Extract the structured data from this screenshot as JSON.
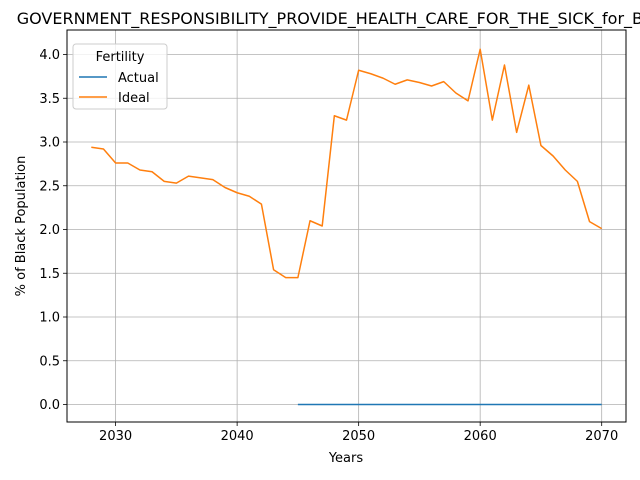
{
  "chart_data": {
    "type": "line",
    "title": "GOVERNMENT_RESPONSIBILITY_PROVIDE_HEALTH_CARE_FOR_THE_SICK_for_Black",
    "xlabel": "Years",
    "ylabel": "% of Black Population",
    "xlim": [
      2026,
      2072
    ],
    "ylim": [
      -0.2,
      4.28
    ],
    "xticks": [
      2030,
      2040,
      2050,
      2060,
      2070
    ],
    "yticks": [
      0.0,
      0.5,
      1.0,
      1.5,
      2.0,
      2.5,
      3.0,
      3.5,
      4.0
    ],
    "xtick_labels": [
      "2030",
      "2040",
      "2050",
      "2060",
      "2070"
    ],
    "ytick_labels": [
      "0.0",
      "0.5",
      "1.0",
      "1.5",
      "2.0",
      "2.5",
      "3.0",
      "3.5",
      "4.0"
    ],
    "grid": true,
    "legend": {
      "title": "Fertility",
      "placement": "top-left"
    },
    "series": [
      {
        "name": "Actual",
        "color": "#1f77b4",
        "x": [
          2045,
          2046,
          2047,
          2048,
          2049,
          2050,
          2051,
          2052,
          2053,
          2054,
          2055,
          2056,
          2057,
          2058,
          2059,
          2060,
          2061,
          2062,
          2063,
          2064,
          2065,
          2066,
          2067,
          2068,
          2069,
          2070
        ],
        "y": [
          0,
          0,
          0,
          0,
          0,
          0,
          0,
          0,
          0,
          0,
          0,
          0,
          0,
          0,
          0,
          0,
          0,
          0,
          0,
          0,
          0,
          0,
          0,
          0,
          0,
          0
        ]
      },
      {
        "name": "Ideal",
        "color": "#ff7f0e",
        "x": [
          2028,
          2029,
          2030,
          2031,
          2032,
          2033,
          2034,
          2035,
          2036,
          2037,
          2038,
          2039,
          2040,
          2041,
          2042,
          2043,
          2044,
          2045,
          2046,
          2047,
          2048,
          2049,
          2050,
          2051,
          2052,
          2053,
          2054,
          2055,
          2056,
          2057,
          2058,
          2059,
          2060,
          2061,
          2062,
          2063,
          2064,
          2065,
          2066,
          2067,
          2068,
          2069,
          2070
        ],
        "y": [
          2.94,
          2.92,
          2.76,
          2.76,
          2.68,
          2.66,
          2.55,
          2.53,
          2.61,
          2.59,
          2.57,
          2.48,
          2.42,
          2.38,
          2.29,
          1.54,
          1.45,
          1.45,
          2.1,
          2.04,
          3.3,
          3.25,
          3.82,
          3.78,
          3.73,
          3.66,
          3.71,
          3.68,
          3.64,
          3.69,
          3.56,
          3.47,
          4.06,
          3.25,
          3.88,
          3.11,
          3.65,
          2.96,
          2.84,
          2.68,
          2.55,
          2.09,
          2.01
        ]
      }
    ]
  }
}
